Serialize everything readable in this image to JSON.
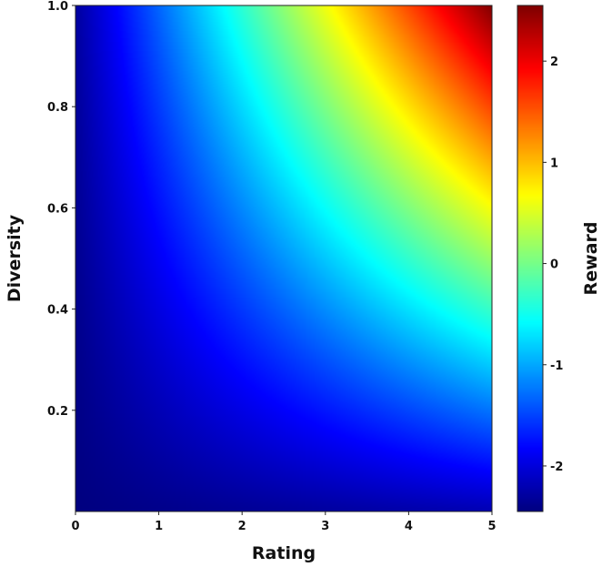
{
  "chart_data": {
    "type": "heatmap",
    "title": "",
    "xlabel": "Rating",
    "ylabel": "Diversity",
    "colorbar_label": "Reward",
    "xlim": [
      0,
      5
    ],
    "ylim": [
      0,
      1
    ],
    "x_ticks": [
      0,
      1,
      2,
      3,
      4,
      5
    ],
    "x_tick_labels": [
      "0",
      "1",
      "2",
      "3",
      "4",
      "5"
    ],
    "y_ticks": [
      0.2,
      0.4,
      0.6,
      0.8,
      1.0
    ],
    "y_tick_labels": [
      "0.2",
      "0.4",
      "0.6",
      "0.8",
      "1.0"
    ],
    "colorbar_range": [
      -2.45,
      2.55
    ],
    "colorbar_ticks": [
      -2,
      -1,
      0,
      1,
      2
    ],
    "colorbar_tick_labels": [
      "-2",
      "-1",
      "0",
      "1",
      "2"
    ],
    "colormap": "jet",
    "grid": false,
    "z_corner_values": {
      "rating_0_diversity_0": -2.45,
      "rating_0_diversity_1": -2.3,
      "rating_5_diversity_0": -2.2,
      "rating_5_diversity_1": 2.55
    }
  }
}
